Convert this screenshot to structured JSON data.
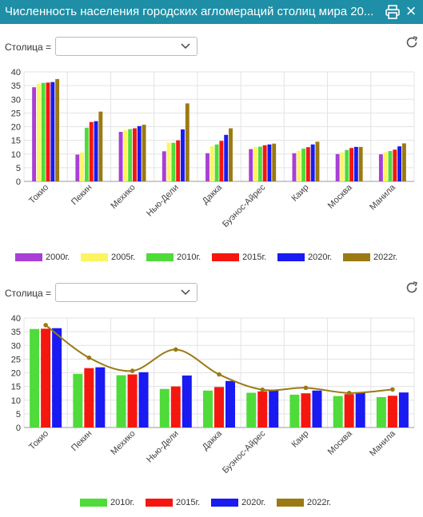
{
  "header": {
    "title": "Численность населения городских агломераций столиц мира 20...",
    "close_glyph": "×"
  },
  "filters": [
    {
      "label": "Столица =",
      "value": ""
    },
    {
      "label": "Столица =",
      "value": ""
    }
  ],
  "icons": [
    "print-icon",
    "close-icon",
    "chevron-down-icon",
    "refresh-icon"
  ],
  "chart_data": [
    {
      "type": "bar",
      "categories": [
        "Токио",
        "Пекин",
        "Мехико",
        "Нью-Дели",
        "Дакка",
        "Буэнос-Айрес",
        "Каир",
        "Москва",
        "Манила"
      ],
      "ylim": [
        0,
        40
      ],
      "yticks": [
        0,
        5,
        10,
        15,
        20,
        25,
        30,
        35,
        40
      ],
      "grid": true,
      "legend_position": "bottom",
      "series": [
        {
          "name": "2000г.",
          "color": "#a83fd6",
          "values": [
            34.4,
            9.8,
            18.1,
            11.0,
            10.3,
            11.8,
            10.3,
            10.0,
            9.9
          ]
        },
        {
          "name": "2005г.",
          "color": "#fcf55f",
          "values": [
            35.6,
            10.6,
            18.7,
            14.2,
            12.8,
            12.5,
            11.2,
            10.6,
            10.7
          ]
        },
        {
          "name": "2010г.",
          "color": "#4fdb3a",
          "values": [
            36.0,
            19.6,
            19.1,
            14.1,
            13.5,
            12.7,
            12.0,
            11.5,
            11.1
          ]
        },
        {
          "name": "2015г.",
          "color": "#f5170f",
          "values": [
            36.1,
            21.7,
            19.4,
            15.0,
            14.8,
            13.2,
            12.5,
            12.2,
            11.6
          ]
        },
        {
          "name": "2020г.",
          "color": "#1a1af2",
          "values": [
            36.3,
            22.0,
            20.2,
            19.0,
            17.0,
            13.5,
            13.5,
            12.6,
            12.8
          ]
        },
        {
          "name": "2022г.",
          "color": "#9b7a13",
          "values": [
            37.4,
            25.5,
            20.7,
            28.5,
            19.4,
            13.8,
            14.5,
            12.6,
            13.9
          ]
        }
      ]
    },
    {
      "type": "bar",
      "categories": [
        "Токио",
        "Пекин",
        "Мехико",
        "Нью-Дели",
        "Дакка",
        "Буэнос-Айрес",
        "Каир",
        "Москва",
        "Манила"
      ],
      "ylim": [
        0,
        40
      ],
      "yticks": [
        0,
        5,
        10,
        15,
        20,
        25,
        30,
        35,
        40
      ],
      "grid": true,
      "legend_position": "bottom",
      "series": [
        {
          "name": "2010г.",
          "color": "#4fdb3a",
          "type": "bar",
          "values": [
            36.0,
            19.6,
            19.1,
            14.1,
            13.5,
            12.7,
            12.0,
            11.5,
            11.1
          ]
        },
        {
          "name": "2015г.",
          "color": "#f5170f",
          "type": "bar",
          "values": [
            36.1,
            21.7,
            19.4,
            15.0,
            14.8,
            13.2,
            12.5,
            12.2,
            11.6
          ]
        },
        {
          "name": "2020г.",
          "color": "#1a1af2",
          "type": "bar",
          "values": [
            36.3,
            22.0,
            20.2,
            19.0,
            17.0,
            13.5,
            13.5,
            12.6,
            12.8
          ]
        },
        {
          "name": "2022г.",
          "color": "#9b7a13",
          "type": "line",
          "values": [
            37.4,
            25.5,
            20.7,
            28.5,
            19.4,
            13.8,
            14.5,
            12.6,
            13.9
          ]
        }
      ]
    }
  ]
}
